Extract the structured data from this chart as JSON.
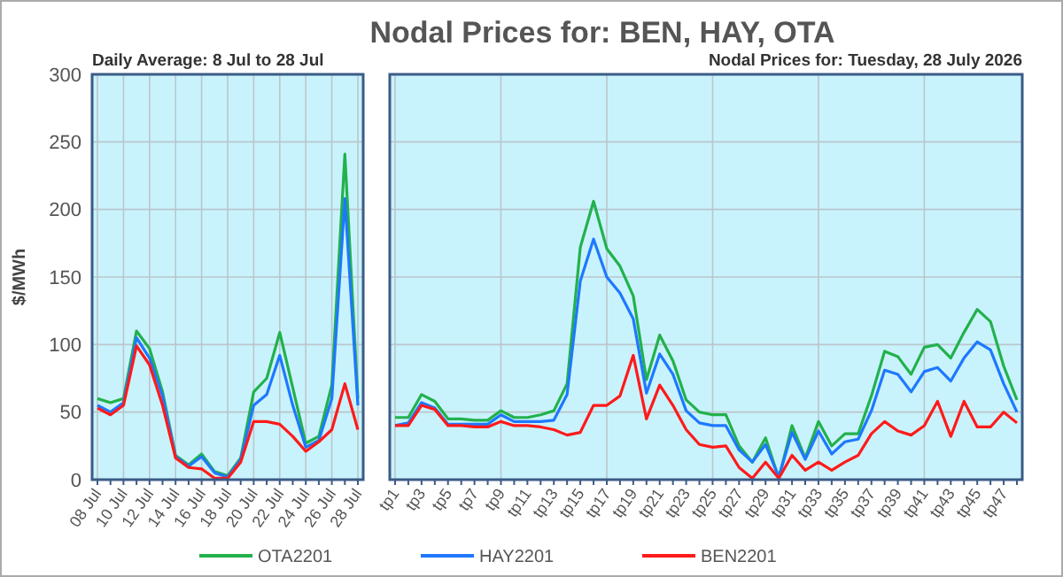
{
  "chart_data": [
    {
      "type": "line",
      "subtitle": "Daily Average: 8 Jul to 28 Jul",
      "ylabel": "$/MWh",
      "categories": [
        "08 Jul",
        null,
        "10 Jul",
        null,
        "12 Jul",
        null,
        "14 Jul",
        null,
        "16 Jul",
        null,
        "18 Jul",
        null,
        "20 Jul",
        null,
        "22 Jul",
        null,
        "24 Jul",
        null,
        "26 Jul",
        null,
        "28 Jul"
      ],
      "series": [
        {
          "color": "#22b14c",
          "values": [
            60,
            57,
            60,
            110,
            97,
            65,
            18,
            11,
            19,
            6,
            3,
            16,
            65,
            75,
            109,
            68,
            27,
            32,
            70,
            241,
            60
          ]
        },
        {
          "color": "#1e78ff",
          "values": [
            55,
            50,
            57,
            105,
            90,
            62,
            17,
            10,
            17,
            5,
            2,
            15,
            55,
            63,
            92,
            55,
            24,
            29,
            60,
            208,
            55
          ]
        },
        {
          "color": "#ff1a1a",
          "values": [
            53,
            48,
            55,
            99,
            85,
            55,
            16,
            9,
            8,
            1,
            1,
            13,
            43,
            43,
            41,
            32,
            21,
            28,
            37,
            71,
            37
          ]
        }
      ],
      "ylim": [
        0,
        300
      ],
      "yticks": [
        0,
        50,
        100,
        150,
        200,
        250,
        300
      ],
      "grid": true
    },
    {
      "type": "line",
      "title": "Nodal Prices for: BEN, HAY, OTA",
      "subtitle": "Nodal Prices for: Tuesday, 28 July 2026",
      "categories": [
        "tp1",
        null,
        "tp3",
        null,
        "tp5",
        null,
        "tp7",
        null,
        "tp9",
        null,
        "tp11",
        null,
        "tp13",
        null,
        "tp15",
        null,
        "tp17",
        null,
        "tp19",
        null,
        "tp21",
        null,
        "tp23",
        null,
        "tp25",
        null,
        "tp27",
        null,
        "tp29",
        null,
        "tp31",
        null,
        "tp33",
        null,
        "tp35",
        null,
        "tp37",
        null,
        "tp39",
        null,
        "tp41",
        null,
        "tp43",
        null,
        "tp45",
        null,
        "tp47",
        null
      ],
      "series": [
        {
          "name": "OTA2201",
          "color": "#22b14c",
          "values": [
            46,
            46,
            63,
            58,
            45,
            45,
            44,
            44,
            51,
            46,
            46,
            48,
            51,
            71,
            172,
            206,
            171,
            158,
            136,
            74,
            107,
            88,
            59,
            50,
            48,
            48,
            25,
            13,
            31,
            1,
            40,
            16,
            43,
            25,
            34,
            34,
            62,
            95,
            91,
            78,
            98,
            100,
            90,
            109,
            126,
            117,
            84,
            59
          ]
        },
        {
          "name": "HAY2201",
          "color": "#1e78ff",
          "values": [
            40,
            42,
            57,
            53,
            41,
            41,
            41,
            41,
            48,
            43,
            43,
            43,
            44,
            63,
            147,
            178,
            150,
            138,
            119,
            64,
            93,
            78,
            51,
            42,
            40,
            40,
            22,
            13,
            26,
            2,
            35,
            15,
            36,
            19,
            28,
            30,
            51,
            81,
            78,
            65,
            80,
            83,
            73,
            90,
            102,
            96,
            71,
            50
          ]
        },
        {
          "name": "BEN2201",
          "color": "#ff1a1a",
          "values": [
            40,
            40,
            55,
            52,
            40,
            40,
            39,
            39,
            43,
            40,
            40,
            39,
            37,
            33,
            35,
            55,
            55,
            62,
            92,
            45,
            70,
            55,
            37,
            26,
            24,
            25,
            9,
            1,
            13,
            1,
            18,
            7,
            13,
            7,
            13,
            18,
            34,
            43,
            36,
            33,
            40,
            58,
            32,
            58,
            39,
            39,
            50,
            42
          ]
        }
      ],
      "ylim": [
        0,
        300
      ],
      "yticks": [
        0,
        50,
        100,
        150,
        200,
        250,
        300
      ],
      "grid": true,
      "tick_labels": "x",
      "legend": "bottom"
    }
  ]
}
